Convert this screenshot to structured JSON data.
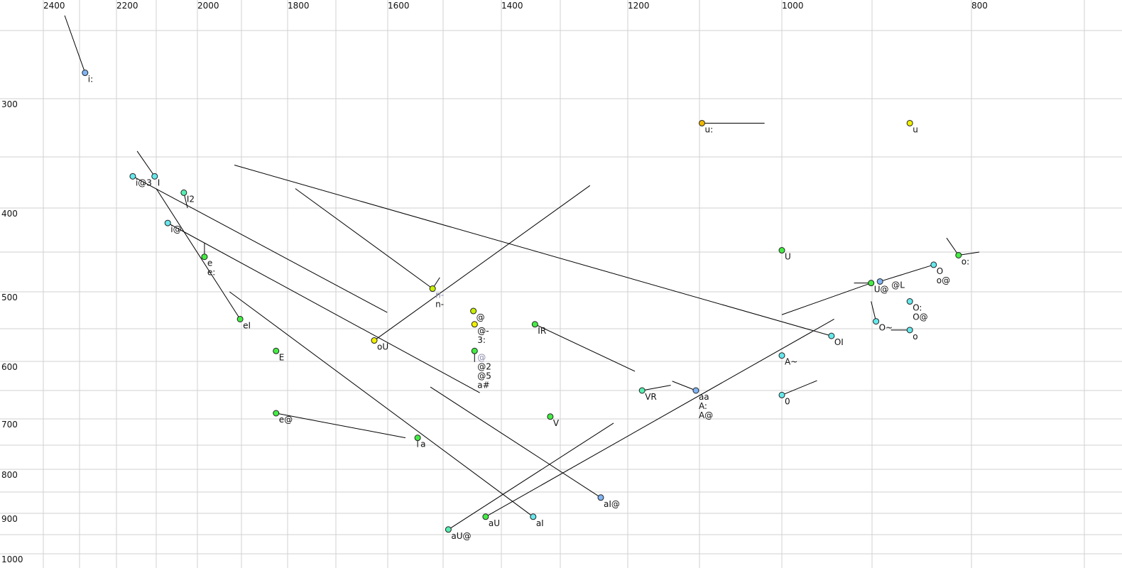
{
  "chart_data": {
    "type": "scatter",
    "title": "",
    "xlabel": "",
    "ylabel": "",
    "x_axis": {
      "quantity": "F2 (Hz)",
      "reversed": true,
      "scale": "nonlinear (auditory)",
      "position": "top",
      "range": [
        2400,
        700
      ],
      "tick_labels": [
        2400,
        2200,
        2000,
        1800,
        1600,
        1400,
        1200,
        1000,
        800
      ],
      "gridlines": [
        2400,
        2300,
        2200,
        2100,
        2000,
        1900,
        1800,
        1700,
        1600,
        1500,
        1400,
        1300,
        1200,
        1100,
        1000,
        900,
        800,
        700
      ]
    },
    "y_axis": {
      "quantity": "F1 (Hz)",
      "reversed": true,
      "scale": "nonlinear (auditory)",
      "position": "left",
      "range": [
        250,
        1000
      ],
      "tick_labels": [
        300,
        400,
        500,
        600,
        700,
        800,
        900,
        1000
      ],
      "gridlines": [
        250,
        300,
        350,
        400,
        450,
        500,
        550,
        600,
        650,
        700,
        750,
        800,
        850,
        900,
        950,
        1000
      ]
    },
    "grid": true,
    "legend": "none",
    "colors": {
      "blue": "#80b4f4",
      "cyan": "#66e8ec",
      "green": "#44ec44",
      "mint": "#58eeb0",
      "yellow": "#f0f000",
      "lime": "#c8f000",
      "orange": "#f0b800",
      "track": "#000000",
      "grid": "#d2d2d2"
    },
    "points": [
      {
        "labels": [
          "i:"
        ],
        "f2": 2285,
        "f1": 281,
        "color": "blue",
        "tracks": [
          [
            2341,
            239
          ]
        ]
      },
      {
        "labels": [
          "i@3"
        ],
        "f2": 2159,
        "f1": 369,
        "color": "cyan",
        "tracks": [
          [
            1601,
            528
          ]
        ]
      },
      {
        "labels": [
          "I"
        ],
        "f2": 2104,
        "f1": 369,
        "color": "cyan",
        "tracks": [
          [
            2148,
            345
          ]
        ]
      },
      {
        "labels": [
          "I2"
        ],
        "f2": 2033,
        "f1": 385,
        "color": "mint",
        "tracks": [
          [
            2024,
            400
          ]
        ]
      },
      {
        "labels": [
          "i@"
        ],
        "f2": 2072,
        "f1": 417,
        "color": "cyan",
        "tracks": [
          [
            1437,
            654
          ]
        ]
      },
      {
        "labels": [
          "e",
          "e:"
        ],
        "f2": 1984,
        "f1": 456,
        "color": "green",
        "tracks": [
          [
            1984,
            440
          ]
        ]
      },
      {
        "labels": [
          "eI"
        ],
        "f2": 1903,
        "f1": 537,
        "color": "green",
        "tracks": [
          [
            2100,
            381
          ]
        ]
      },
      {
        "labels": [
          "E"
        ],
        "f2": 1825,
        "f1": 584,
        "color": "green",
        "tracks": []
      },
      {
        "labels": [
          "e@"
        ],
        "f2": 1825,
        "f1": 690,
        "color": "green",
        "tracks": [
          [
            1568,
            736
          ]
        ]
      },
      {
        "labels": [
          "a"
        ],
        "f2": 1546,
        "f1": 736,
        "color": "green",
        "tracks": [
          [
            1546,
            754
          ]
        ]
      },
      {
        "labels": [
          "aI"
        ],
        "f2": 1346,
        "f1": 908,
        "color": "cyan",
        "tracks": [
          [
            1927,
            500
          ]
        ]
      },
      {
        "labels": [
          "aU"
        ],
        "f2": 1427,
        "f1": 908,
        "color": "green",
        "tracks": [
          [
            942,
            537
          ]
        ]
      },
      {
        "labels": [
          "aU@"
        ],
        "f2": 1491,
        "f1": 938,
        "color": "mint",
        "tracks": [
          [
            1221,
            708
          ]
        ]
      },
      {
        "labels": [
          "aI@"
        ],
        "f2": 1240,
        "f1": 863,
        "color": "blue",
        "tracks": [
          [
            1523,
            644
          ]
        ]
      },
      {
        "labels": [
          "oU"
        ],
        "f2": 1626,
        "f1": 568,
        "color": "yellow",
        "tracks": [
          [
            1256,
            378
          ]
        ]
      },
      {
        "labels": [
          "n-",
          "n-"
        ],
        "muted": [
          0
        ],
        "f2": 1519,
        "f1": 496,
        "color": "lime",
        "tracks": [
          [
            1506,
            482
          ],
          [
            1784,
            381
          ]
        ]
      },
      {
        "labels": [
          "@"
        ],
        "f2": 1448,
        "f1": 526,
        "color": "lime",
        "tracks": []
      },
      {
        "labels": [
          "@-",
          "3:"
        ],
        "f2": 1446,
        "f1": 544,
        "color": "yellow",
        "tracks": []
      },
      {
        "labels": [
          "@",
          "@2",
          "@5",
          "a#"
        ],
        "muted": [
          0
        ],
        "f2": 1446,
        "f1": 584,
        "color": "green",
        "tracks": [
          [
            1446,
            601
          ]
        ]
      },
      {
        "labels": [
          "IR"
        ],
        "f2": 1343,
        "f1": 544,
        "color": "green",
        "tracks": [
          [
            1190,
            617
          ]
        ]
      },
      {
        "labels": [
          "V"
        ],
        "f2": 1317,
        "f1": 696,
        "color": "green",
        "tracks": []
      },
      {
        "labels": [
          "VR"
        ],
        "f2": 1180,
        "f1": 650,
        "color": "mint",
        "tracks": [
          [
            1140,
            641
          ]
        ]
      },
      {
        "labels": [
          "aa",
          "A:",
          "A@"
        ],
        "f2": 1105,
        "f1": 650,
        "color": "blue",
        "tracks": [
          [
            1138,
            634
          ]
        ]
      },
      {
        "labels": [
          "u:"
        ],
        "f2": 1097,
        "f1": 321,
        "color": "orange",
        "tracks": [
          [
            1021,
            321
          ]
        ]
      },
      {
        "labels": [
          "u"
        ],
        "f2": 862,
        "f1": 321,
        "color": "yellow",
        "tracks": []
      },
      {
        "labels": [
          "U"
        ],
        "f2": 1000,
        "f1": 448,
        "color": "green",
        "tracks": []
      },
      {
        "labels": [
          "U@"
        ],
        "f2": 901,
        "f1": 489,
        "color": "green",
        "tracks": [
          [
            920,
            489
          ],
          [
            1000,
            531
          ]
        ]
      },
      {
        "labels": [
          "@L"
        ],
        "f2": 892,
        "f1": 487,
        "color": "blue",
        "tracks": [
          [
            838,
            466
          ]
        ]
      },
      {
        "labels": [
          "O",
          "o@"
        ],
        "f2": 838,
        "f1": 466,
        "color": "cyan",
        "tracks": []
      },
      {
        "labels": [
          "o:"
        ],
        "f2": 813,
        "f1": 454,
        "color": "green",
        "tracks": [
          [
            825,
            434
          ],
          [
            793,
            450
          ]
        ]
      },
      {
        "labels": [
          "O:",
          "O@"
        ],
        "f2": 862,
        "f1": 513,
        "color": "cyan",
        "tracks": []
      },
      {
        "labels": [
          "O~"
        ],
        "f2": 896,
        "f1": 540,
        "color": "cyan",
        "tracks": [
          [
            901,
            513
          ]
        ]
      },
      {
        "labels": [
          "o"
        ],
        "f2": 862,
        "f1": 552,
        "color": "cyan",
        "tracks": [
          [
            881,
            552
          ]
        ]
      },
      {
        "labels": [
          "OI"
        ],
        "f2": 945,
        "f1": 561,
        "color": "cyan",
        "tracks": [
          [
            1916,
            358
          ]
        ]
      },
      {
        "labels": [
          "A~"
        ],
        "f2": 1000,
        "f1": 591,
        "color": "cyan",
        "tracks": []
      },
      {
        "labels": [
          "0"
        ],
        "f2": 1000,
        "f1": 658,
        "color": "cyan",
        "tracks": [
          [
            961,
            633
          ]
        ]
      }
    ]
  }
}
